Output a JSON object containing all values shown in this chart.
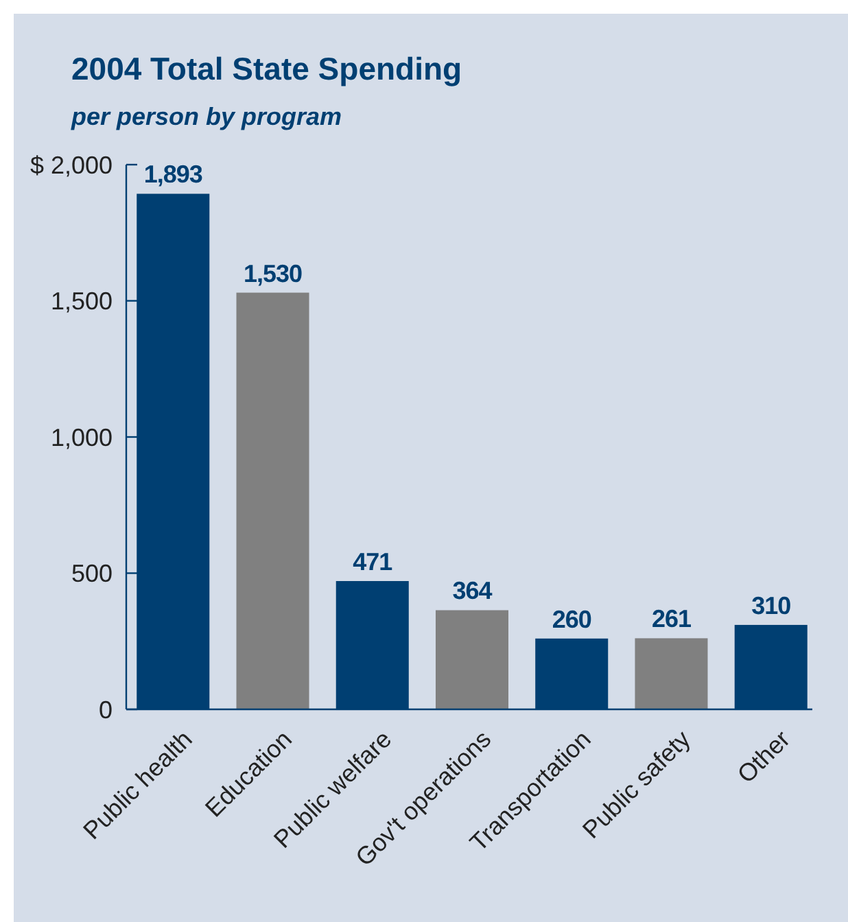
{
  "chart_data": {
    "type": "bar",
    "title": "2004 Total State Spending",
    "subtitle": "per person by program",
    "categories": [
      "Public health",
      "Education",
      "Public welfare",
      "Gov't operations",
      "Transportation",
      "Public safety",
      "Other"
    ],
    "values": [
      1893,
      1530,
      471,
      364,
      260,
      261,
      310
    ],
    "colors": [
      "#003f72",
      "#808080",
      "#003f72",
      "#808080",
      "#003f72",
      "#808080",
      "#003f72"
    ],
    "value_labels": [
      "1,893",
      "1,530",
      "471",
      "364",
      "260",
      "261",
      "310"
    ],
    "ylim": [
      0,
      2000
    ],
    "yticks": [
      0,
      {
        "value": 500,
        "label": "500"
      },
      {
        "value": 1000,
        "label": "1,000"
      },
      {
        "value": 1500,
        "label": "1,500"
      },
      {
        "value": 2000,
        "label": "$ 2,000"
      }
    ],
    "grid": false
  }
}
